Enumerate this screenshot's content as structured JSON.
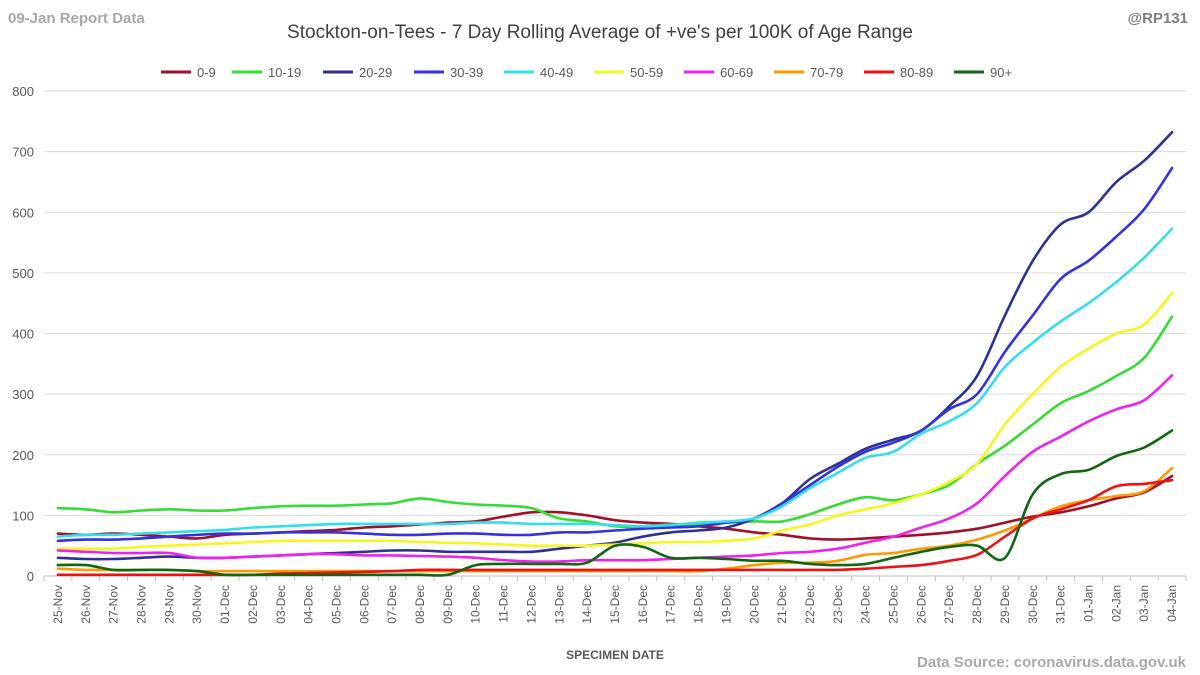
{
  "header": {
    "report_label": "09-Jan Report Data",
    "handle": "@RP131"
  },
  "footer": {
    "source": "Data Source: coronavirus.data.gov.uk"
  },
  "chart_data": {
    "type": "line",
    "title": "Stockton-on-Tees - 7 Day Rolling Average of +ve's per 100K of Age Range",
    "xlabel": "SPECIMEN DATE",
    "ylabel": "",
    "ylim": [
      0,
      800
    ],
    "yticks": [
      "0",
      "100",
      "200",
      "300",
      "400",
      "500",
      "600",
      "700",
      "800"
    ],
    "grid": true,
    "legend_position": "top",
    "categories": [
      "25-Nov",
      "26-Nov",
      "27-Nov",
      "28-Nov",
      "29-Nov",
      "30-Nov",
      "01-Dec",
      "02-Dec",
      "03-Dec",
      "04-Dec",
      "05-Dec",
      "06-Dec",
      "07-Dec",
      "08-Dec",
      "09-Dec",
      "10-Dec",
      "11-Dec",
      "12-Dec",
      "13-Dec",
      "14-Dec",
      "15-Dec",
      "16-Dec",
      "17-Dec",
      "18-Dec",
      "19-Dec",
      "20-Dec",
      "21-Dec",
      "22-Dec",
      "23-Dec",
      "24-Dec",
      "25-Dec",
      "26-Dec",
      "27-Dec",
      "28-Dec",
      "29-Dec",
      "30-Dec",
      "31-Dec",
      "01-Jan",
      "02-Jan",
      "03-Jan",
      "04-Jan"
    ],
    "series": [
      {
        "name": "0-9",
        "color": "#a0102a",
        "values": [
          70,
          68,
          70,
          68,
          65,
          62,
          68,
          70,
          72,
          74,
          76,
          80,
          82,
          85,
          88,
          90,
          98,
          105,
          105,
          100,
          92,
          88,
          86,
          82,
          78,
          72,
          68,
          62,
          60,
          62,
          65,
          68,
          72,
          78,
          88,
          98,
          105,
          115,
          128,
          138,
          165
        ]
      },
      {
        "name": "10-19",
        "color": "#33dd33",
        "values": [
          112,
          110,
          105,
          108,
          110,
          108,
          108,
          112,
          115,
          116,
          116,
          118,
          120,
          128,
          122,
          118,
          116,
          112,
          95,
          90,
          82,
          82,
          85,
          85,
          88,
          90,
          90,
          102,
          118,
          130,
          125,
          135,
          150,
          185,
          215,
          250,
          285,
          305,
          330,
          360,
          428
        ]
      },
      {
        "name": "20-29",
        "color": "#2e3192",
        "values": [
          30,
          28,
          28,
          30,
          32,
          30,
          30,
          32,
          34,
          36,
          38,
          40,
          42,
          42,
          40,
          40,
          40,
          40,
          45,
          50,
          55,
          65,
          72,
          75,
          80,
          95,
          120,
          160,
          185,
          210,
          225,
          240,
          280,
          330,
          430,
          520,
          580,
          600,
          650,
          685,
          732
        ]
      },
      {
        "name": "30-39",
        "color": "#3333dd",
        "values": [
          58,
          60,
          60,
          62,
          65,
          68,
          70,
          70,
          72,
          72,
          72,
          70,
          68,
          68,
          70,
          70,
          68,
          68,
          72,
          72,
          75,
          78,
          80,
          82,
          88,
          95,
          120,
          150,
          180,
          205,
          220,
          240,
          275,
          300,
          370,
          430,
          490,
          520,
          560,
          605,
          673
        ]
      },
      {
        "name": "40-49",
        "color": "#33ddee",
        "values": [
          65,
          68,
          68,
          70,
          72,
          74,
          76,
          80,
          82,
          84,
          86,
          86,
          86,
          86,
          86,
          88,
          88,
          86,
          86,
          86,
          84,
          82,
          84,
          88,
          90,
          95,
          115,
          145,
          170,
          195,
          205,
          235,
          255,
          285,
          345,
          385,
          420,
          450,
          485,
          525,
          573
        ]
      },
      {
        "name": "50-59",
        "color": "#f5f520",
        "values": [
          45,
          45,
          45,
          48,
          50,
          52,
          54,
          56,
          58,
          58,
          58,
          58,
          58,
          56,
          55,
          54,
          52,
          50,
          50,
          50,
          52,
          54,
          56,
          56,
          58,
          62,
          75,
          85,
          100,
          110,
          120,
          135,
          155,
          185,
          250,
          300,
          345,
          375,
          400,
          415,
          467
        ]
      },
      {
        "name": "60-69",
        "color": "#ee22ee",
        "values": [
          42,
          40,
          38,
          38,
          38,
          30,
          30,
          32,
          34,
          36,
          36,
          34,
          34,
          33,
          32,
          30,
          26,
          24,
          24,
          26,
          26,
          26,
          28,
          30,
          32,
          34,
          38,
          40,
          45,
          55,
          65,
          80,
          95,
          120,
          165,
          205,
          230,
          255,
          275,
          290,
          331
        ]
      },
      {
        "name": "70-79",
        "color": "#ff9900",
        "values": [
          12,
          10,
          10,
          10,
          10,
          8,
          8,
          8,
          8,
          8,
          8,
          8,
          8,
          8,
          8,
          8,
          8,
          8,
          8,
          8,
          8,
          8,
          8,
          8,
          12,
          18,
          22,
          22,
          25,
          35,
          38,
          45,
          50,
          60,
          75,
          95,
          115,
          125,
          132,
          140,
          178
        ]
      },
      {
        "name": "80-89",
        "color": "#ee1111",
        "values": [
          2,
          2,
          2,
          2,
          2,
          2,
          2,
          2,
          4,
          5,
          6,
          7,
          8,
          10,
          10,
          10,
          10,
          10,
          10,
          10,
          10,
          10,
          10,
          10,
          10,
          10,
          10,
          10,
          10,
          12,
          15,
          18,
          25,
          35,
          65,
          95,
          110,
          125,
          148,
          152,
          158
        ]
      },
      {
        "name": "90+",
        "color": "#116611",
        "values": [
          18,
          18,
          10,
          10,
          10,
          8,
          2,
          2,
          2,
          2,
          2,
          2,
          2,
          2,
          2,
          18,
          20,
          20,
          20,
          22,
          50,
          48,
          30,
          30,
          28,
          25,
          25,
          20,
          18,
          20,
          30,
          40,
          48,
          50,
          30,
          135,
          168,
          175,
          198,
          212,
          240
        ]
      }
    ]
  }
}
